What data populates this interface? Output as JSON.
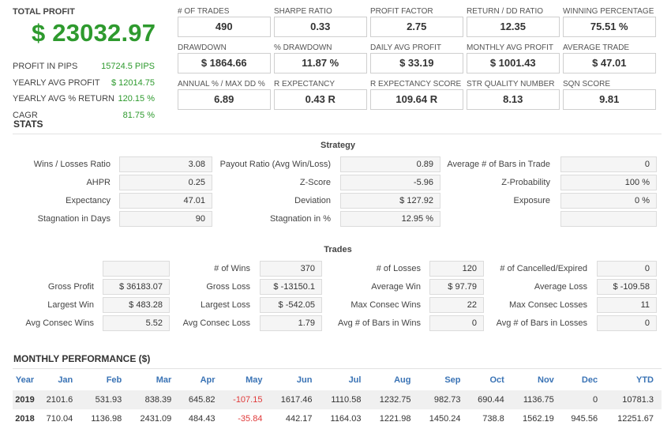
{
  "summary": {
    "total_label": "TOTAL PROFIT",
    "total_value": "$ 23032.97",
    "rows": [
      {
        "label": "PROFIT IN PIPS",
        "value": "15724.5 PIPS"
      },
      {
        "label": "YEARLY AVG PROFIT",
        "value": "$ 12014.75"
      },
      {
        "label": "YEARLY AVG % RETURN",
        "value": "120.15 %"
      },
      {
        "label": "CAGR",
        "value": "81.75 %"
      }
    ]
  },
  "kpis": [
    {
      "label": "# OF TRADES",
      "value": "490"
    },
    {
      "label": "SHARPE RATIO",
      "value": "0.33"
    },
    {
      "label": "PROFIT FACTOR",
      "value": "2.75"
    },
    {
      "label": "RETURN / DD RATIO",
      "value": "12.35"
    },
    {
      "label": "WINNING PERCENTAGE",
      "value": "75.51 %"
    },
    {
      "label": "DRAWDOWN",
      "value": "$ 1864.66"
    },
    {
      "label": "% DRAWDOWN",
      "value": "11.87 %"
    },
    {
      "label": "DAILY AVG PROFIT",
      "value": "$ 33.19"
    },
    {
      "label": "MONTHLY AVG PROFIT",
      "value": "$ 1001.43"
    },
    {
      "label": "AVERAGE TRADE",
      "value": "$ 47.01"
    },
    {
      "label": "ANNUAL % / MAX DD %",
      "value": "6.89"
    },
    {
      "label": "R EXPECTANCY",
      "value": "0.43 R"
    },
    {
      "label": "R EXPECTANCY SCORE",
      "value": "109.64 R"
    },
    {
      "label": "STR QUALITY NUMBER",
      "value": "8.13"
    },
    {
      "label": "SQN SCORE",
      "value": "9.81"
    }
  ],
  "stats": {
    "title": "STATS",
    "strategy": {
      "title": "Strategy",
      "rows": [
        [
          {
            "label": "Wins / Losses Ratio",
            "value": "3.08"
          },
          {
            "label": "Payout Ratio (Avg Win/Loss)",
            "value": "0.89"
          },
          {
            "label": "Average # of Bars in Trade",
            "value": "0"
          }
        ],
        [
          {
            "label": "AHPR",
            "value": "0.25"
          },
          {
            "label": "Z-Score",
            "value": "-5.96"
          },
          {
            "label": "Z-Probability",
            "value": "100 %"
          }
        ],
        [
          {
            "label": "Expectancy",
            "value": "47.01"
          },
          {
            "label": "Deviation",
            "value": "$ 127.92"
          },
          {
            "label": "Exposure",
            "value": "0 %"
          }
        ],
        [
          {
            "label": "Stagnation in Days",
            "value": "90"
          },
          {
            "label": "Stagnation in %",
            "value": "12.95 %"
          },
          {
            "label": "",
            "value": ""
          }
        ]
      ]
    },
    "trades": {
      "title": "Trades",
      "rows": [
        [
          {
            "label": "",
            "value": ""
          },
          {
            "label": "# of Wins",
            "value": "370"
          },
          {
            "label": "# of Losses",
            "value": "120"
          },
          {
            "label": "# of Cancelled/Expired",
            "value": "0"
          }
        ],
        [
          {
            "label": "Gross Profit",
            "value": "$ 36183.07"
          },
          {
            "label": "Gross Loss",
            "value": "$ -13150.1"
          },
          {
            "label": "Average Win",
            "value": "$ 97.79"
          },
          {
            "label": "Average Loss",
            "value": "$ -109.58"
          }
        ],
        [
          {
            "label": "Largest Win",
            "value": "$ 483.28"
          },
          {
            "label": "Largest Loss",
            "value": "$ -542.05"
          },
          {
            "label": "Max Consec Wins",
            "value": "22"
          },
          {
            "label": "Max Consec Losses",
            "value": "11"
          }
        ],
        [
          {
            "label": "Avg Consec Wins",
            "value": "5.52"
          },
          {
            "label": "Avg Consec Loss",
            "value": "1.79"
          },
          {
            "label": "Avg # of Bars in Wins",
            "value": "0"
          },
          {
            "label": "Avg # of Bars in Losses",
            "value": "0"
          }
        ]
      ]
    }
  },
  "monthly": {
    "title": "MONTHLY PERFORMANCE ($)",
    "headers": [
      "Year",
      "Jan",
      "Feb",
      "Mar",
      "Apr",
      "May",
      "Jun",
      "Jul",
      "Aug",
      "Sep",
      "Oct",
      "Nov",
      "Dec",
      "YTD"
    ],
    "rows": [
      [
        "2019",
        "2101.6",
        "531.93",
        "838.39",
        "645.82",
        "-107.15",
        "1617.46",
        "1110.58",
        "1232.75",
        "982.73",
        "690.44",
        "1136.75",
        "0",
        "10781.3"
      ],
      [
        "2018",
        "710.04",
        "1136.98",
        "2431.09",
        "484.43",
        "-35.84",
        "442.17",
        "1164.03",
        "1221.98",
        "1450.24",
        "738.8",
        "1562.19",
        "945.56",
        "12251.67"
      ]
    ],
    "negative_color": "#e03a3a"
  },
  "colors": {
    "profit_green": "#2e9a2e",
    "header_blue": "#3a73b5",
    "cell_background": "#f5f5f5"
  }
}
